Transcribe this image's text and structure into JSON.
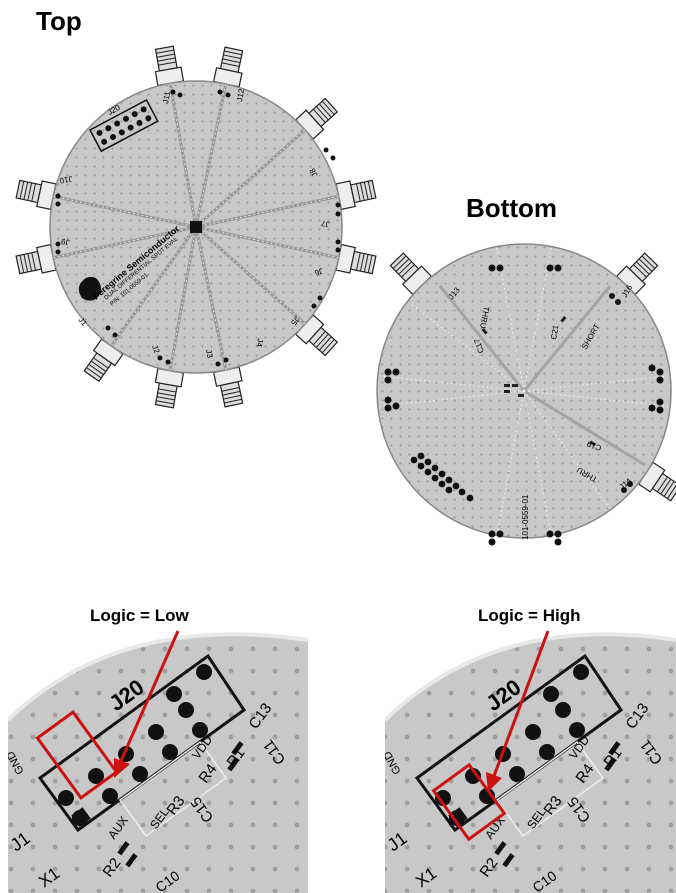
{
  "headings": {
    "top": "Top",
    "bottom": "Bottom",
    "logic_low": "Logic = Low",
    "logic_high": "Logic = High"
  },
  "top_board": {
    "connectors": [
      "J1",
      "J2",
      "J3",
      "J4",
      "J5",
      "J6",
      "J7",
      "J8",
      "J9",
      "J10",
      "J11",
      "J12"
    ],
    "header": "J20",
    "logo": "Peregrine Semiconductor",
    "subtitle": "DUAL DIFFERENTIAL SPDT EVAL",
    "part_number": "P/N: 101-0559-01"
  },
  "bottom_board": {
    "connectors": [
      "J13",
      "J14",
      "J16"
    ],
    "trace_labels": [
      "THRU",
      "THRU",
      "SHORT"
    ],
    "caps": [
      "C17",
      "C21",
      "C19"
    ],
    "part_number": "101-0559-01"
  },
  "detail": {
    "header": "J20",
    "pin_labels": [
      "GND",
      "VDD",
      "R1",
      "C13",
      "C15",
      "R4",
      "R3",
      "SEL",
      "AUX",
      "R2",
      "X1",
      "J1",
      "C11",
      "C10"
    ]
  },
  "colors": {
    "board": "#c8c8c8",
    "highlight": "#cc1111",
    "silkscreen": "#000000"
  }
}
